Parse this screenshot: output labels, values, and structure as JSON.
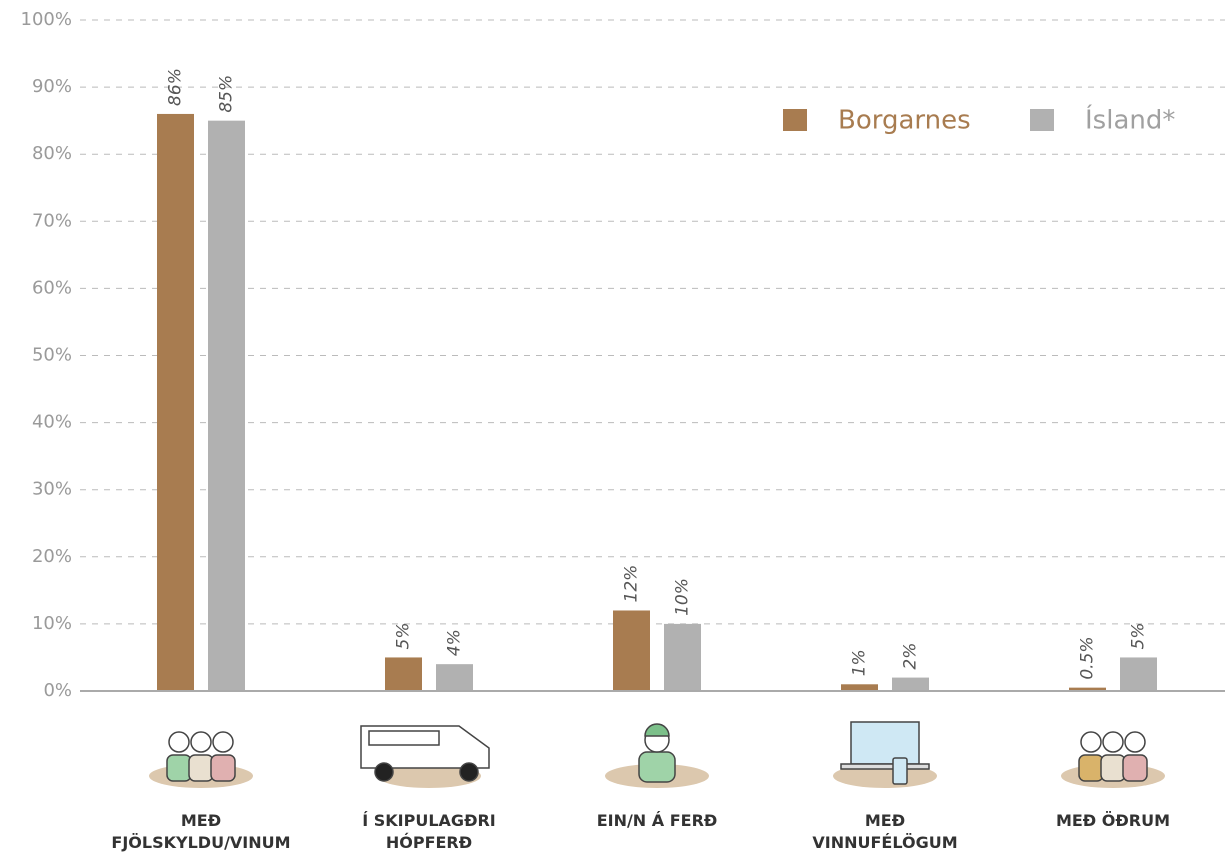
{
  "chart_data": {
    "type": "bar",
    "categories": [
      "MEÐ\nFJÖLSKYLDU/VINUM",
      "Í SKIPULAGÐRI\nHÓPFERÐ",
      "EIN/N Á FERÐ",
      "MEÐ\nVINNUFÉLÖGUM",
      "MEÐ ÖÐRUM"
    ],
    "series": [
      {
        "name": "Borgarnes",
        "color": "#a87c50",
        "values": [
          86,
          5,
          12,
          1,
          0.5
        ],
        "value_labels": [
          "86%",
          "5%",
          "12%",
          "1%",
          "0.5%"
        ]
      },
      {
        "name": "Ísland*",
        "color": "#b1b1b1",
        "values": [
          85,
          4,
          10,
          2,
          5
        ],
        "value_labels": [
          "85%",
          "4%",
          "10%",
          "2%",
          "5%"
        ]
      }
    ],
    "ylim": [
      0,
      100
    ],
    "yticks": [
      {
        "value": 0,
        "label": "0%"
      },
      {
        "value": 10,
        "label": "10%"
      },
      {
        "value": 20,
        "label": "20%"
      },
      {
        "value": 30,
        "label": "30%"
      },
      {
        "value": 40,
        "label": "40%"
      },
      {
        "value": 50,
        "label": "50%"
      },
      {
        "value": 60,
        "label": "60%"
      },
      {
        "value": 70,
        "label": "70%"
      },
      {
        "value": 80,
        "label": "80%"
      },
      {
        "value": 90,
        "label": "90%"
      },
      {
        "value": 100,
        "label": "100%"
      }
    ],
    "grid": true,
    "legend": "top-right"
  }
}
